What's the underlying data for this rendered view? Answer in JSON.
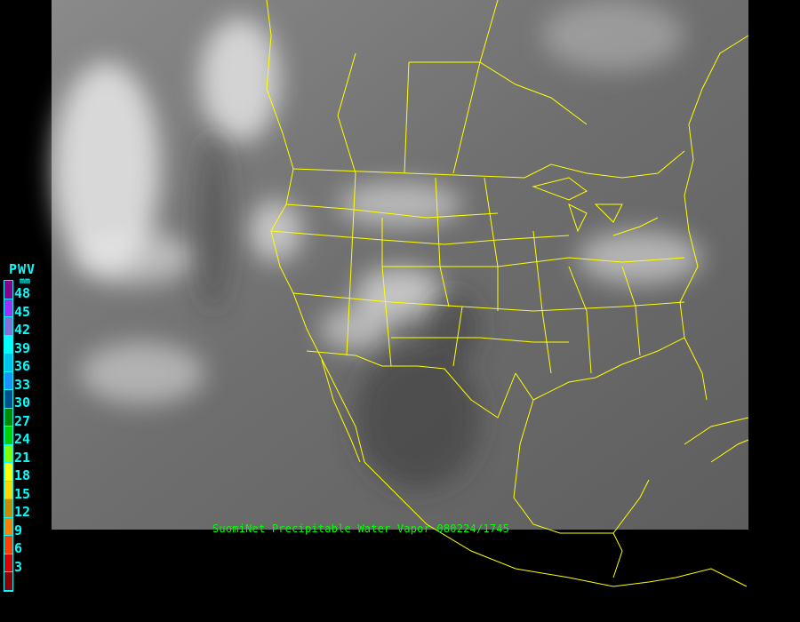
{
  "legend": {
    "title": "PWV",
    "unit": "mm",
    "labels": [
      "48",
      "45",
      "42",
      "39",
      "36",
      "33",
      "30",
      "27",
      "24",
      "21",
      "18",
      "15",
      "12",
      "9",
      "6",
      "3"
    ],
    "colors": [
      "#8b008b",
      "#9b30ff",
      "#8470d8",
      "#00ffff",
      "#00c0f0",
      "#1e90ff",
      "#00508c",
      "#008a00",
      "#00d000",
      "#80ff00",
      "#ffff00",
      "#ffd700",
      "#c88a00",
      "#ff8000",
      "#ff4000",
      "#d80000",
      "#8b0000"
    ]
  },
  "caption": "SuomiNet Precipitable Water Vapor 080224/1745",
  "map": {
    "imagery": "grayscale satellite",
    "border_color": "#ffff00",
    "background_color": "#000000"
  }
}
